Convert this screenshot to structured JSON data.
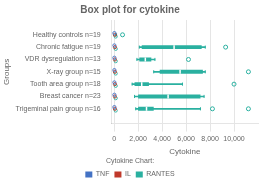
{
  "chart_data": {
    "type": "box",
    "orientation": "horizontal",
    "title": "Box plot for cytokine",
    "xlabel": "Cytokine",
    "ylabel": "Groups",
    "categories": [
      "Healthy controls n=19",
      "Chronic fatigue n=19",
      "VDR dysregulation n=13",
      "X-ray group n=15",
      "Tooth area group n=18",
      "Breast cancer n=23",
      "Trigeminal pain group n=16"
    ],
    "boxes": [
      {
        "q1": 0,
        "median": 10,
        "q3": 100,
        "whisker_low": 0,
        "whisker_high": 200,
        "outliers": [
          700
        ]
      },
      {
        "q1": 2300,
        "median": 5000,
        "q3": 7300,
        "whisker_low": 2100,
        "whisker_high": 7600,
        "outliers": [
          9300
        ]
      },
      {
        "q1": 2100,
        "median": 2600,
        "q3": 3100,
        "whisker_low": 1900,
        "whisker_high": 3400,
        "outliers": [
          6200
        ]
      },
      {
        "q1": 3800,
        "median": 5500,
        "q3": 7400,
        "whisker_low": 3300,
        "whisker_high": 7600,
        "outliers": [
          11200
        ]
      },
      {
        "q1": 1700,
        "median": 2300,
        "q3": 2900,
        "whisker_low": 1500,
        "whisker_high": 5700,
        "outliers": [
          10000
        ]
      },
      {
        "q1": 2000,
        "median": 4500,
        "q3": 7200,
        "whisker_low": 1700,
        "whisker_high": 7500,
        "outliers": []
      },
      {
        "q1": 2000,
        "median": 2700,
        "q3": 3300,
        "whisker_low": 1800,
        "whisker_high": 7200,
        "outliers": [
          8200,
          11200
        ]
      }
    ],
    "color": "#2ab0a0",
    "series": [
      {
        "name": "TNF",
        "color": "#4472C4",
        "values": [
          20,
          20,
          20,
          20,
          20,
          20,
          20
        ]
      },
      {
        "name": "IL",
        "color": "#c0392b",
        "values": [
          60,
          60,
          60,
          60,
          60,
          60,
          60
        ]
      },
      {
        "name": "RANTES",
        "color": "#2ab0a0",
        "values": [
          130,
          130,
          130,
          130,
          130,
          130,
          130
        ]
      }
    ],
    "legend_title": "Cytokine Chart:",
    "legend": "bottom",
    "xlim": [
      -200,
      12000
    ],
    "xticks": [
      0,
      {
        "value": 2000,
        "label": "2,000"
      },
      {
        "value": 4000,
        "label": "4,000"
      },
      {
        "value": 6000,
        "label": "6,000"
      },
      {
        "value": 8000,
        "label": "8,000"
      },
      {
        "value": 10000,
        "label": "10,000"
      }
    ],
    "grid": "x"
  }
}
